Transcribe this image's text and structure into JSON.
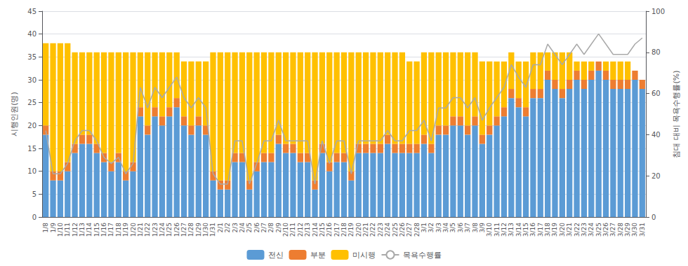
{
  "chart_data": {
    "type": "bar",
    "categories": [
      "1/8",
      "1/9",
      "1/10",
      "1/11",
      "1/12",
      "1/13",
      "1/14",
      "1/15",
      "1/16",
      "1/17",
      "1/18",
      "1/19",
      "1/20",
      "1/21",
      "1/22",
      "1/23",
      "1/24",
      "1/25",
      "1/26",
      "1/27",
      "1/28",
      "1/29",
      "1/30",
      "1/31",
      "2/1",
      "2/2",
      "2/3",
      "2/4",
      "2/5",
      "2/6",
      "2/7",
      "2/8",
      "2/9",
      "2/10",
      "2/11",
      "2/12",
      "2/13",
      "2/14",
      "2/15",
      "2/16",
      "2/17",
      "2/18",
      "2/19",
      "2/20",
      "2/21",
      "2/22",
      "2/23",
      "2/24",
      "2/25",
      "2/26",
      "2/27",
      "2/28",
      "3/1",
      "3/2",
      "3/3",
      "3/4",
      "3/5",
      "3/6",
      "3/7",
      "3/8",
      "3/9",
      "3/10",
      "3/11",
      "3/12",
      "3/13",
      "3/14",
      "3/15",
      "3/16",
      "3/17",
      "3/18",
      "3/19",
      "3/20",
      "3/21",
      "3/22",
      "3/23",
      "3/24",
      "3/25",
      "3/26",
      "3/27",
      "3/28",
      "3/29",
      "3/30",
      "3/31"
    ],
    "series": [
      {
        "name": "전신",
        "color": "#5B9BD5",
        "values": [
          18,
          8,
          8,
          10,
          14,
          16,
          16,
          14,
          12,
          10,
          12,
          8,
          10,
          22,
          18,
          22,
          20,
          22,
          24,
          20,
          18,
          20,
          18,
          8,
          6,
          6,
          12,
          12,
          6,
          10,
          12,
          12,
          16,
          14,
          14,
          12,
          12,
          6,
          14,
          10,
          12,
          12,
          8,
          14,
          14,
          14,
          14,
          16,
          14,
          14,
          14,
          14,
          16,
          14,
          18,
          18,
          20,
          20,
          18,
          20,
          16,
          18,
          20,
          22,
          26,
          24,
          22,
          26,
          26,
          30,
          28,
          26,
          28,
          30,
          28,
          30,
          32,
          30,
          28,
          28,
          28,
          30,
          28
        ]
      },
      {
        "name": "부분",
        "color": "#ED7D31",
        "values": [
          2,
          2,
          2,
          2,
          2,
          2,
          2,
          2,
          2,
          2,
          2,
          2,
          2,
          2,
          2,
          2,
          2,
          2,
          2,
          2,
          2,
          2,
          2,
          2,
          2,
          2,
          2,
          2,
          2,
          2,
          2,
          2,
          2,
          2,
          2,
          2,
          2,
          2,
          2,
          2,
          2,
          2,
          2,
          2,
          2,
          2,
          2,
          2,
          2,
          2,
          2,
          2,
          2,
          2,
          2,
          2,
          2,
          2,
          2,
          2,
          2,
          2,
          2,
          2,
          2,
          2,
          2,
          2,
          2,
          2,
          2,
          2,
          2,
          2,
          2,
          2,
          2,
          2,
          2,
          2,
          2,
          2,
          2
        ]
      },
      {
        "name": "미시행",
        "color": "#FFC000",
        "values": [
          18,
          28,
          28,
          26,
          20,
          18,
          18,
          20,
          22,
          24,
          22,
          26,
          24,
          12,
          16,
          12,
          14,
          12,
          10,
          12,
          14,
          12,
          14,
          26,
          28,
          28,
          22,
          22,
          28,
          24,
          22,
          22,
          18,
          20,
          20,
          22,
          22,
          28,
          20,
          24,
          22,
          22,
          26,
          20,
          20,
          20,
          20,
          18,
          20,
          20,
          18,
          18,
          18,
          20,
          16,
          16,
          14,
          14,
          16,
          14,
          16,
          14,
          12,
          10,
          8,
          8,
          10,
          8,
          8,
          4,
          6,
          8,
          6,
          2,
          4,
          2,
          0,
          2,
          4,
          4,
          4,
          0,
          0
        ]
      },
      {
        "name": "목욕수행률",
        "type": "line",
        "axis": "y2",
        "color": "#A9A9A9",
        "values": [
          42,
          21,
          21,
          26,
          37,
          42,
          42,
          37,
          29,
          26,
          29,
          21,
          26,
          63,
          53,
          63,
          58,
          63,
          68,
          58,
          53,
          58,
          53,
          21,
          16,
          16,
          37,
          37,
          16,
          26,
          37,
          37,
          47,
          37,
          37,
          37,
          37,
          16,
          37,
          26,
          37,
          37,
          21,
          37,
          37,
          37,
          37,
          42,
          37,
          37,
          42,
          42,
          47,
          37,
          53,
          53,
          58,
          58,
          53,
          58,
          47,
          53,
          58,
          63,
          74,
          68,
          63,
          74,
          74,
          84,
          79,
          74,
          79,
          84,
          79,
          84,
          89,
          84,
          79,
          79,
          79,
          84,
          87
        ]
      }
    ],
    "ylabel": "시행인원(명)",
    "y2label": "침대 대비 목욕수행률(%)",
    "ylim": [
      0,
      45
    ],
    "yticks": [
      0,
      5,
      10,
      15,
      20,
      25,
      30,
      35,
      40,
      45
    ],
    "y2lim": [
      0,
      100
    ],
    "y2ticks": [
      0,
      20,
      40,
      60,
      80,
      100
    ],
    "stacked": true,
    "grid": true,
    "legend": "bottom"
  }
}
